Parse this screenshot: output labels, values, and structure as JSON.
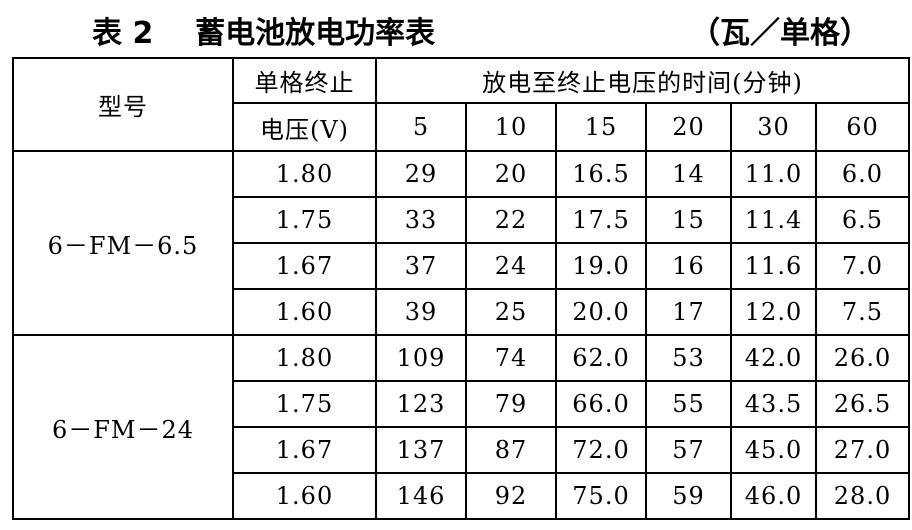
{
  "title": "表 2    蓄电池放电功率表",
  "unit": "（瓦／单格）",
  "header": {
    "model": "型号",
    "voltage_line1": "单格终止",
    "voltage_line2": "电压(V)",
    "time_group": "放电至终止电压的时间(分钟)",
    "minutes": [
      "5",
      "10",
      "15",
      "20",
      "30",
      "60"
    ]
  },
  "groups": [
    {
      "model": "6－FM－6.5",
      "rows": [
        {
          "voltage": "1.80",
          "values": [
            "29",
            "20",
            "16.5",
            "14",
            "11.0",
            "6.0"
          ]
        },
        {
          "voltage": "1.75",
          "values": [
            "33",
            "22",
            "17.5",
            "15",
            "11.4",
            "6.5"
          ]
        },
        {
          "voltage": "1.67",
          "values": [
            "37",
            "24",
            "19.0",
            "16",
            "11.6",
            "7.0"
          ]
        },
        {
          "voltage": "1.60",
          "values": [
            "39",
            "25",
            "20.0",
            "17",
            "12.0",
            "7.5"
          ]
        }
      ]
    },
    {
      "model": "6－FM－24",
      "rows": [
        {
          "voltage": "1.80",
          "values": [
            "109",
            "74",
            "62.0",
            "53",
            "42.0",
            "26.0"
          ]
        },
        {
          "voltage": "1.75",
          "values": [
            "123",
            "79",
            "66.0",
            "55",
            "43.5",
            "26.5"
          ]
        },
        {
          "voltage": "1.67",
          "values": [
            "137",
            "87",
            "72.0",
            "57",
            "45.0",
            "27.0"
          ]
        },
        {
          "voltage": "1.60",
          "values": [
            "146",
            "92",
            "75.0",
            "59",
            "46.0",
            "28.0"
          ]
        }
      ]
    }
  ]
}
